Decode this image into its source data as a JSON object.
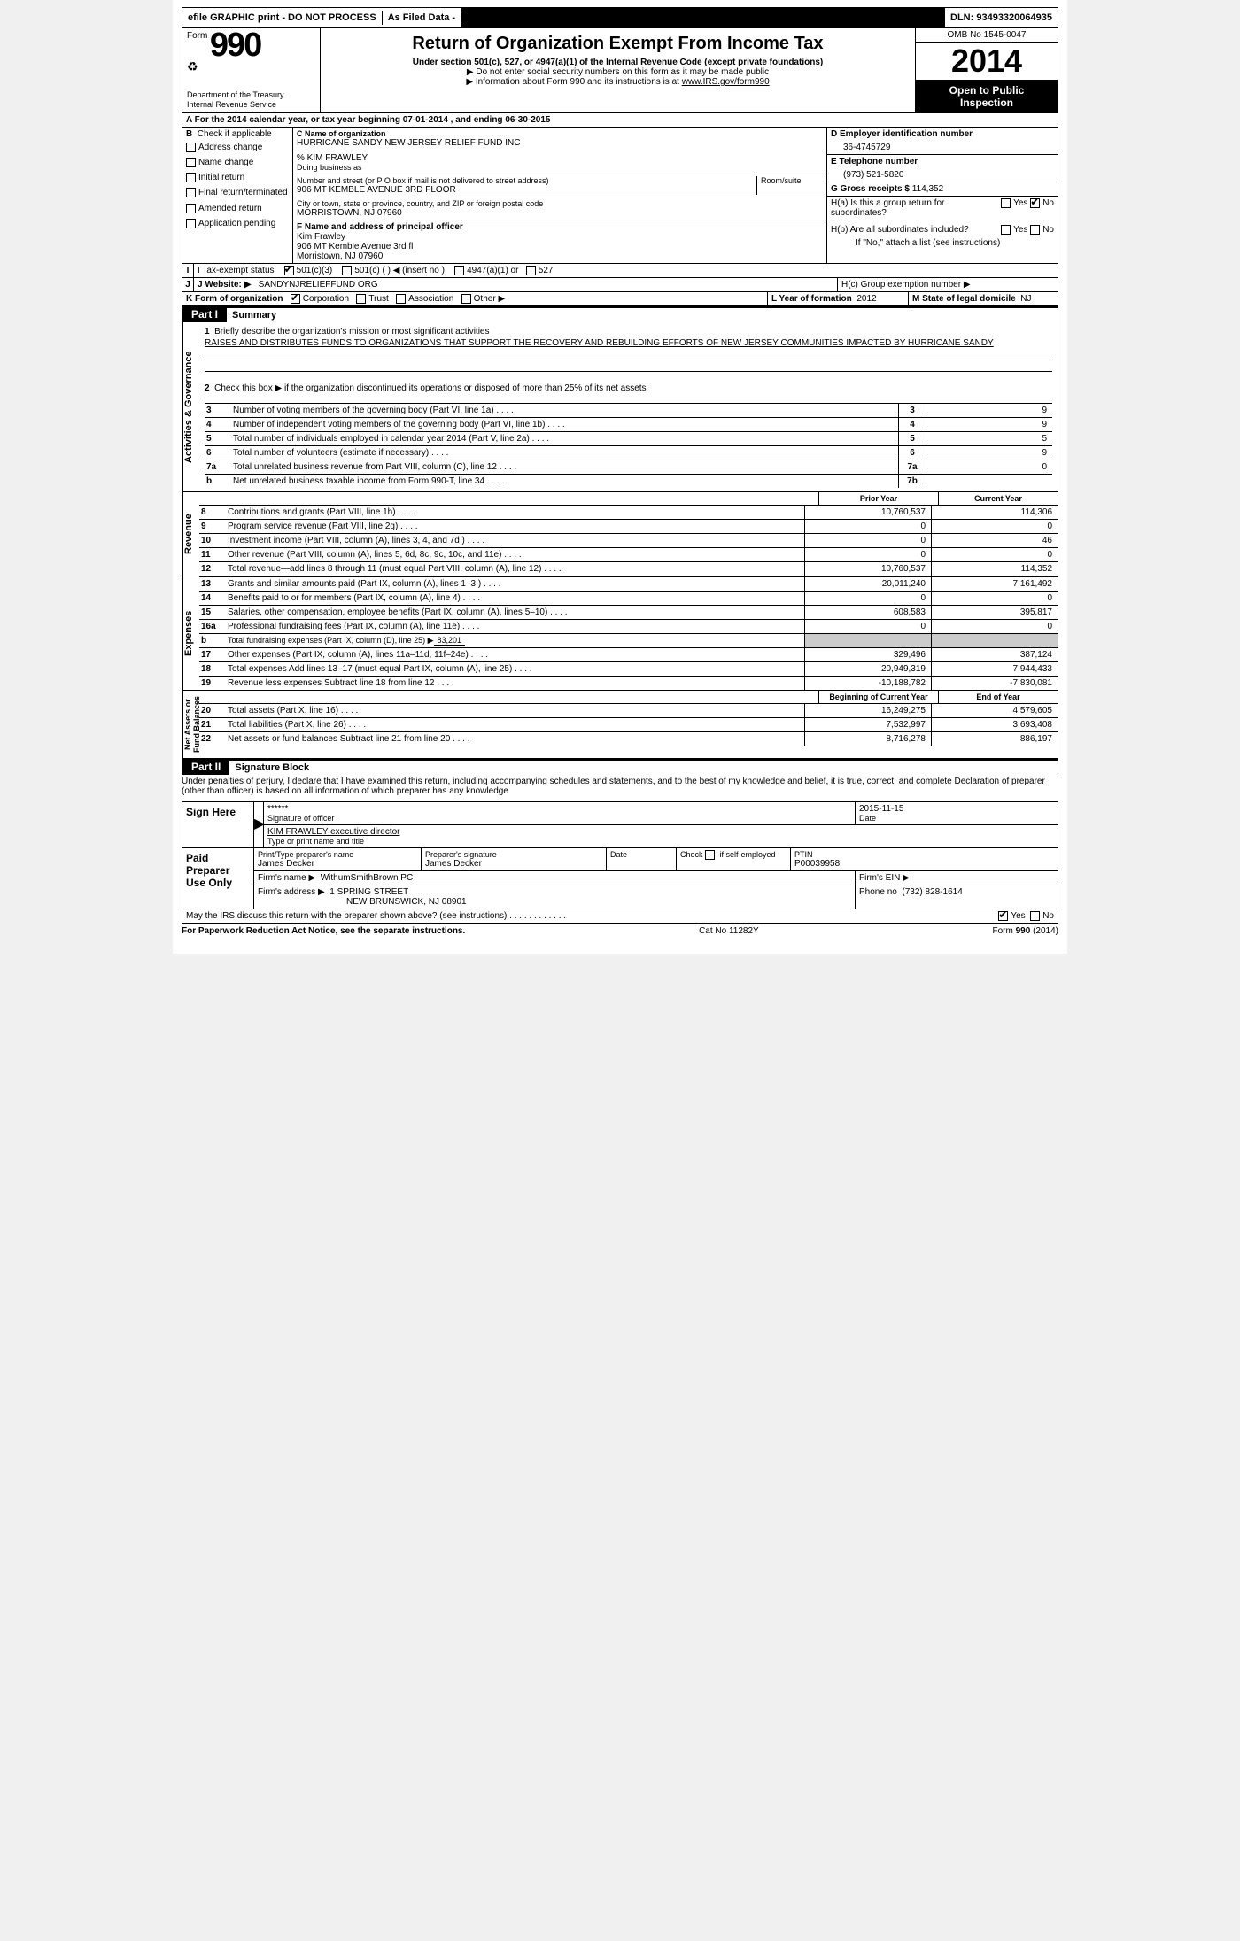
{
  "topbar": {
    "efile": "efile GRAPHIC print - DO NOT PROCESS",
    "asfiled": "As Filed Data -",
    "dln": "DLN: 93493320064935"
  },
  "header": {
    "form_word": "Form",
    "form_number": "990",
    "dept1": "Department of the Treasury",
    "dept2": "Internal Revenue Service",
    "title": "Return of Organization Exempt From Income Tax",
    "subtitle": "Under section 501(c), 527, or 4947(a)(1) of the Internal Revenue Code (except private foundations)",
    "note1": "▶ Do not enter social security numbers on this form as it may be made public",
    "note2_pre": "▶ Information about Form 990 and its instructions is at ",
    "note2_link": "www.IRS.gov/form990",
    "omb": "OMB No 1545-0047",
    "year": "2014",
    "openpub1": "Open to Public",
    "openpub2": "Inspection"
  },
  "row_a": "A  For the 2014 calendar year, or tax year beginning 07-01-2014     , and ending 06-30-2015",
  "section_b": {
    "b_label": "B",
    "check_label": "Check if applicable",
    "items": [
      "Address change",
      "Name change",
      "Initial return",
      "Final return/terminated",
      "Amended return",
      "Application pending"
    ]
  },
  "section_c": {
    "label": "C Name of organization",
    "org": "HURRICANE SANDY NEW JERSEY RELIEF FUND INC",
    "care_of": "% KIM FRAWLEY",
    "dba_label": "Doing business as",
    "addr_label": "Number and street (or P O  box if mail is not delivered to street address)",
    "room_label": "Room/suite",
    "addr": "906 MT KEMBLE AVENUE 3RD FLOOR",
    "city_label": "City or town, state or province, country, and ZIP or foreign postal code",
    "city": "MORRISTOWN, NJ  07960"
  },
  "section_d": {
    "label": "D  Employer identification number",
    "value": "36-4745729"
  },
  "section_e": {
    "label": "E  Telephone number",
    "value": "(973) 521-5820"
  },
  "section_g": {
    "label": "G  Gross receipts $",
    "value": "114,352"
  },
  "section_f": {
    "label": "F    Name and address of principal officer",
    "name": "Kim Frawley",
    "addr1": "906 MT Kemble Avenue 3rd fl",
    "addr2": "Morristown, NJ  07960"
  },
  "section_h": {
    "ha_label": "H(a)   Is this a group return for subordinates?",
    "hb_label": "H(b)  Are all subordinates included?",
    "hb_note": "If \"No,\" attach a list  (see instructions)",
    "hc_label": "H(c)   Group exemption number ▶",
    "yes": "Yes",
    "no": "No"
  },
  "section_i": {
    "label": "I     Tax-exempt status",
    "opts": [
      "501(c)(3)",
      "501(c) (   ) ◀ (insert no )",
      "4947(a)(1) or",
      "527"
    ]
  },
  "section_j": {
    "label": "J    Website: ▶",
    "value": "SANDYNJRELIEFFUND ORG"
  },
  "section_k": {
    "label": "K Form of organization",
    "opts": [
      "Corporation",
      "Trust",
      "Association",
      "Other ▶"
    ],
    "l_label": "L  Year of formation",
    "l_value": "2012",
    "m_label": "M  State of legal domicile",
    "m_value": "NJ"
  },
  "part1": {
    "tag": "Part I",
    "title": "Summary"
  },
  "summary": {
    "line1_label": "Briefly describe the organization's mission or most significant activities",
    "line1_text": "RAISES AND DISTRIBUTES FUNDS TO ORGANIZATIONS THAT SUPPORT THE RECOVERY AND REBUILDING EFFORTS OF NEW JERSEY COMMUNITIES IMPACTED BY HURRICANE SANDY",
    "line2": "Check this box ▶        if the organization discontinued its operations or disposed of more than 25% of its net assets"
  },
  "gov_rows": [
    {
      "n": "3",
      "t": "Number of voting members of the governing body (Part VI, line 1a)",
      "k": "3",
      "v": "9"
    },
    {
      "n": "4",
      "t": "Number of independent voting members of the governing body (Part VI, line 1b)",
      "k": "4",
      "v": "9"
    },
    {
      "n": "5",
      "t": "Total number of individuals employed in calendar year 2014 (Part V, line 2a)",
      "k": "5",
      "v": "5"
    },
    {
      "n": "6",
      "t": "Total number of volunteers (estimate if necessary)",
      "k": "6",
      "v": "9"
    },
    {
      "n": "7a",
      "t": "Total unrelated business revenue from Part VIII, column (C), line 12",
      "k": "7a",
      "v": "0"
    },
    {
      "n": "b",
      "t": "Net unrelated business taxable income from Form 990-T, line 34",
      "k": "7b",
      "v": ""
    }
  ],
  "col_heads": {
    "py": "Prior Year",
    "cy": "Current Year"
  },
  "rev_rows": [
    {
      "n": "8",
      "t": "Contributions and grants (Part VIII, line 1h)",
      "py": "10,760,537",
      "cy": "114,306"
    },
    {
      "n": "9",
      "t": "Program service revenue (Part VIII, line 2g)",
      "py": "0",
      "cy": "0"
    },
    {
      "n": "10",
      "t": "Investment income (Part VIII, column (A), lines 3, 4, and 7d )",
      "py": "0",
      "cy": "46"
    },
    {
      "n": "11",
      "t": "Other revenue (Part VIII, column (A), lines 5, 6d, 8c, 9c, 10c, and 11e)",
      "py": "0",
      "cy": "0"
    },
    {
      "n": "12",
      "t": "Total revenue—add lines 8 through 11 (must equal Part VIII, column (A), line 12)",
      "py": "10,760,537",
      "cy": "114,352"
    }
  ],
  "exp_rows": [
    {
      "n": "13",
      "t": "Grants and similar amounts paid (Part IX, column (A), lines 1–3 )",
      "py": "20,011,240",
      "cy": "7,161,492"
    },
    {
      "n": "14",
      "t": "Benefits paid to or for members (Part IX, column (A), line 4)",
      "py": "0",
      "cy": "0"
    },
    {
      "n": "15",
      "t": "Salaries, other compensation, employee benefits (Part IX, column (A), lines 5–10)",
      "py": "608,583",
      "cy": "395,817"
    },
    {
      "n": "16a",
      "t": "Professional fundraising fees (Part IX, column (A), line 11e)",
      "py": "0",
      "cy": "0"
    },
    {
      "n": "b",
      "t": "Total fundraising expenses (Part IX, column (D), line 25)  ▶",
      "py": "",
      "cy": "",
      "extra": "83,201",
      "nopy": true
    },
    {
      "n": "17",
      "t": "Other expenses (Part IX, column (A), lines 11a–11d, 11f–24e)",
      "py": "329,496",
      "cy": "387,124"
    },
    {
      "n": "18",
      "t": "Total expenses  Add lines 13–17 (must equal Part IX, column (A), line 25)",
      "py": "20,949,319",
      "cy": "7,944,433"
    },
    {
      "n": "19",
      "t": "Revenue less expenses  Subtract line 18 from line 12",
      "py": "-10,188,782",
      "cy": "-7,830,081"
    }
  ],
  "na_heads": {
    "boy": "Beginning of Current Year",
    "eoy": "End of Year"
  },
  "na_rows": [
    {
      "n": "20",
      "t": "Total assets (Part X, line 16)",
      "py": "16,249,275",
      "cy": "4,579,605"
    },
    {
      "n": "21",
      "t": "Total liabilities (Part X, line 26)",
      "py": "7,532,997",
      "cy": "3,693,408"
    },
    {
      "n": "22",
      "t": "Net assets or fund balances  Subtract line 21 from line 20",
      "py": "8,716,278",
      "cy": "886,197"
    }
  ],
  "part2": {
    "tag": "Part II",
    "title": "Signature Block"
  },
  "perjury": "Under penalties of perjury, I declare that I have examined this return, including accompanying schedules and statements, and to the best of my knowledge and belief, it is true, correct, and complete  Declaration of preparer (other than officer) is based on all information of which preparer has any knowledge",
  "sign": {
    "here": "Sign Here",
    "stars": "******",
    "sig_of_officer": "Signature of officer",
    "date_label": "Date",
    "date_val": "2015-11-15",
    "name_title": "KIM FRAWLEY executive director",
    "type_print": "Type or print name and title"
  },
  "prep": {
    "label": "Paid Preparer Use Only",
    "c1": "Print/Type preparer's name",
    "c1v": "James Decker",
    "c2": "Preparer's signature",
    "c2v": "James Decker",
    "c3": "Date",
    "c4": "Check         if self-employed",
    "c5": "PTIN",
    "c5v": "P00039958",
    "firm_name_l": "Firm's name      ▶",
    "firm_name": "WithumSmithBrown PC",
    "firm_ein_l": "Firm's EIN ▶",
    "firm_addr_l": "Firm's address ▶",
    "firm_addr1": "1 SPRING STREET",
    "firm_addr2": "NEW BRUNSWICK, NJ  08901",
    "phone_l": "Phone no",
    "phone": "(732) 828-1614"
  },
  "discuss": "May the IRS discuss this return with the preparer shown above? (see instructions)",
  "footer": {
    "left": "For Paperwork Reduction Act Notice, see the separate instructions.",
    "mid": "Cat No 11282Y",
    "right": "Form 990 (2014)"
  }
}
